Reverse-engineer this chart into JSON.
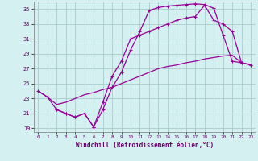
{
  "xlabel": "Windchill (Refroidissement éolien,°C)",
  "bg_color": "#d4f0f0",
  "grid_color": "#aacccc",
  "line_color": "#990099",
  "xlim": [
    -0.5,
    23.5
  ],
  "ylim": [
    18.5,
    36.0
  ],
  "xticks": [
    0,
    1,
    2,
    3,
    4,
    5,
    6,
    7,
    8,
    9,
    10,
    11,
    12,
    13,
    14,
    15,
    16,
    17,
    18,
    19,
    20,
    21,
    22,
    23
  ],
  "yticks": [
    19,
    21,
    23,
    25,
    27,
    29,
    31,
    33,
    35
  ],
  "line1_x": [
    0,
    1,
    2,
    3,
    4,
    5,
    6,
    7,
    8,
    9,
    10,
    11,
    12,
    13,
    14,
    15,
    16,
    17,
    18,
    19,
    20,
    21,
    22,
    23
  ],
  "line1_y": [
    24.0,
    23.2,
    21.5,
    21.0,
    20.5,
    21.0,
    19.2,
    21.5,
    24.5,
    26.5,
    29.5,
    32.0,
    34.8,
    35.2,
    35.4,
    35.5,
    35.6,
    35.7,
    35.6,
    35.1,
    31.5,
    28.0,
    27.8,
    27.5
  ],
  "line2_x": [
    2,
    3,
    4,
    5,
    6,
    7,
    8,
    9,
    10,
    11,
    12,
    13,
    14,
    15,
    16,
    17,
    18,
    19,
    20,
    21,
    22,
    23
  ],
  "line2_y": [
    21.5,
    21.0,
    20.5,
    21.0,
    19.2,
    22.5,
    26.0,
    28.0,
    31.0,
    31.5,
    32.0,
    32.5,
    33.0,
    33.5,
    33.8,
    34.0,
    35.5,
    33.5,
    33.0,
    32.0,
    27.8,
    27.5
  ],
  "line3_x": [
    0,
    1,
    2,
    3,
    4,
    5,
    6,
    7,
    8,
    9,
    10,
    11,
    12,
    13,
    14,
    15,
    16,
    17,
    18,
    19,
    20,
    21,
    22,
    23
  ],
  "line3_y": [
    24.0,
    23.2,
    22.2,
    22.5,
    23.0,
    23.5,
    23.8,
    24.2,
    24.5,
    25.0,
    25.5,
    26.0,
    26.5,
    27.0,
    27.3,
    27.5,
    27.8,
    28.0,
    28.3,
    28.5,
    28.7,
    28.8,
    27.8,
    27.5
  ]
}
